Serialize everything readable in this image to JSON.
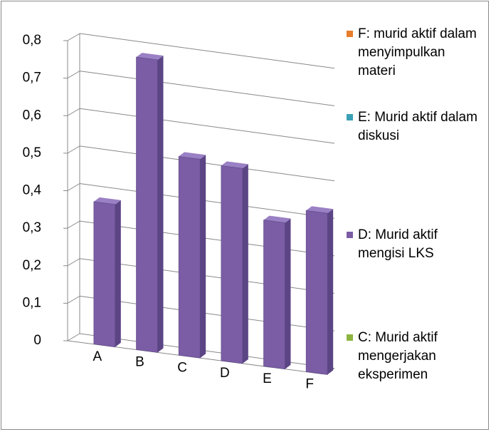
{
  "chart_data": {
    "type": "bar3d",
    "categories": [
      "A",
      "B",
      "C",
      "D",
      "E",
      "F"
    ],
    "values": [
      0.38,
      0.78,
      0.53,
      0.52,
      0.39,
      0.43
    ],
    "color": "#7a5da5",
    "ylim": [
      0,
      0.8
    ],
    "yticks": [
      0,
      {
        "value": 0.1,
        "label": "0,1"
      },
      {
        "value": 0.2,
        "label": "0,2"
      },
      {
        "value": 0.3,
        "label": "0,3"
      },
      {
        "value": 0.4,
        "label": "0,4"
      },
      {
        "value": 0.5,
        "label": "0,5"
      },
      {
        "value": 0.6,
        "label": "0,6"
      },
      {
        "value": 0.7,
        "label": "0,7"
      },
      {
        "value": 0.8,
        "label": "0,8"
      }
    ],
    "grid": true,
    "legend": [
      {
        "name": "F: murid aktif dalam menyimpulkan materi",
        "color": "#e87d2b"
      },
      {
        "name": "E: Murid aktif dalam diskusi",
        "color": "#3aa0b5"
      },
      {
        "name": "D: Murid aktif mengisi LKS",
        "color": "#7a5da5"
      },
      {
        "name": "C: Murid aktif mengerjakan eksperimen",
        "color": "#8db43e"
      }
    ]
  }
}
